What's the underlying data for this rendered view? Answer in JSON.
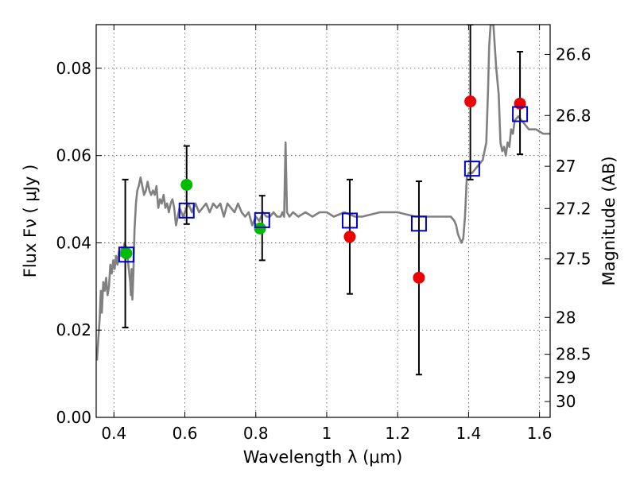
{
  "chart_data": {
    "type": "scatter",
    "xlabel": "Wavelength  λ (μm)",
    "ylabel": "Flux  Fν ( μJy )",
    "y2label": "Magnitude (AB)",
    "xlim": [
      0.35,
      1.63
    ],
    "ylim": [
      0.0,
      0.09
    ],
    "grid": true,
    "x_ticks": [
      0.4,
      0.6,
      0.8,
      1.0,
      1.2,
      1.4,
      1.6
    ],
    "x_tick_labels": [
      "0.4",
      "0.6",
      "0.8",
      "1",
      "1.2",
      "1.4",
      "1.6"
    ],
    "y_ticks": [
      0.0,
      0.02,
      0.04,
      0.06,
      0.08
    ],
    "y_tick_labels": [
      "0.00",
      "0.02",
      "0.04",
      "0.06",
      "0.08"
    ],
    "y2_ticks": [
      {
        "mag": 26.6,
        "label": "26.6"
      },
      {
        "mag": 26.8,
        "label": "26.8"
      },
      {
        "mag": 27.0,
        "label": "27"
      },
      {
        "mag": 27.2,
        "label": "27.2"
      },
      {
        "mag": 27.5,
        "label": "27.5"
      },
      {
        "mag": 28.0,
        "label": "28"
      },
      {
        "mag": 28.5,
        "label": "28.5"
      },
      {
        "mag": 29.0,
        "label": "29"
      },
      {
        "mag": 30.0,
        "label": "30"
      }
    ],
    "series": [
      {
        "name": "SED template",
        "kind": "line",
        "color": "#808080",
        "points": [
          [
            0.352,
            0.013
          ],
          [
            0.356,
            0.018
          ],
          [
            0.36,
            0.023
          ],
          [
            0.363,
            0.029
          ],
          [
            0.366,
            0.024
          ],
          [
            0.37,
            0.031
          ],
          [
            0.374,
            0.029
          ],
          [
            0.378,
            0.032
          ],
          [
            0.382,
            0.028
          ],
          [
            0.386,
            0.03
          ],
          [
            0.39,
            0.035
          ],
          [
            0.394,
            0.033
          ],
          [
            0.398,
            0.036
          ],
          [
            0.402,
            0.034
          ],
          [
            0.406,
            0.037
          ],
          [
            0.41,
            0.035
          ],
          [
            0.414,
            0.038
          ],
          [
            0.418,
            0.037
          ],
          [
            0.422,
            0.039
          ],
          [
            0.426,
            0.038
          ],
          [
            0.43,
            0.04
          ],
          [
            0.434,
            0.039
          ],
          [
            0.438,
            0.037
          ],
          [
            0.442,
            0.034
          ],
          [
            0.446,
            0.031
          ],
          [
            0.448,
            0.028
          ],
          [
            0.45,
            0.034
          ],
          [
            0.452,
            0.027
          ],
          [
            0.455,
            0.033
          ],
          [
            0.458,
            0.043
          ],
          [
            0.462,
            0.049
          ],
          [
            0.466,
            0.052
          ],
          [
            0.47,
            0.053
          ],
          [
            0.475,
            0.055
          ],
          [
            0.48,
            0.053
          ],
          [
            0.485,
            0.051
          ],
          [
            0.49,
            0.052
          ],
          [
            0.495,
            0.054
          ],
          [
            0.5,
            0.052
          ],
          [
            0.505,
            0.051
          ],
          [
            0.51,
            0.052
          ],
          [
            0.515,
            0.051
          ],
          [
            0.52,
            0.053
          ],
          [
            0.525,
            0.048
          ],
          [
            0.53,
            0.05
          ],
          [
            0.535,
            0.049
          ],
          [
            0.54,
            0.051
          ],
          [
            0.545,
            0.048
          ],
          [
            0.55,
            0.049
          ],
          [
            0.555,
            0.047
          ],
          [
            0.56,
            0.049
          ],
          [
            0.565,
            0.05
          ],
          [
            0.57,
            0.048
          ],
          [
            0.575,
            0.044
          ],
          [
            0.58,
            0.046
          ],
          [
            0.585,
            0.048
          ],
          [
            0.59,
            0.047
          ],
          [
            0.595,
            0.046
          ],
          [
            0.6,
            0.047
          ],
          [
            0.61,
            0.049
          ],
          [
            0.62,
            0.047
          ],
          [
            0.63,
            0.049
          ],
          [
            0.64,
            0.047
          ],
          [
            0.65,
            0.048
          ],
          [
            0.66,
            0.049
          ],
          [
            0.67,
            0.047
          ],
          [
            0.68,
            0.049
          ],
          [
            0.69,
            0.048
          ],
          [
            0.7,
            0.049
          ],
          [
            0.71,
            0.046
          ],
          [
            0.72,
            0.049
          ],
          [
            0.73,
            0.048
          ],
          [
            0.74,
            0.047
          ],
          [
            0.75,
            0.049
          ],
          [
            0.76,
            0.047
          ],
          [
            0.77,
            0.046
          ],
          [
            0.78,
            0.047
          ],
          [
            0.79,
            0.044
          ],
          [
            0.8,
            0.046
          ],
          [
            0.81,
            0.045
          ],
          [
            0.82,
            0.047
          ],
          [
            0.83,
            0.046
          ],
          [
            0.84,
            0.046
          ],
          [
            0.85,
            0.047
          ],
          [
            0.86,
            0.046
          ],
          [
            0.87,
            0.046
          ],
          [
            0.875,
            0.047
          ],
          [
            0.88,
            0.046
          ],
          [
            0.884,
            0.063
          ],
          [
            0.888,
            0.047
          ],
          [
            0.895,
            0.046
          ],
          [
            0.905,
            0.047
          ],
          [
            0.92,
            0.046
          ],
          [
            0.94,
            0.047
          ],
          [
            0.96,
            0.046
          ],
          [
            0.98,
            0.047
          ],
          [
            1.0,
            0.047
          ],
          [
            1.02,
            0.046
          ],
          [
            1.05,
            0.047
          ],
          [
            1.08,
            0.046
          ],
          [
            1.1,
            0.046
          ],
          [
            1.15,
            0.047
          ],
          [
            1.2,
            0.047
          ],
          [
            1.25,
            0.046
          ],
          [
            1.3,
            0.046
          ],
          [
            1.35,
            0.046
          ],
          [
            1.36,
            0.045
          ],
          [
            1.365,
            0.044
          ],
          [
            1.37,
            0.042
          ],
          [
            1.375,
            0.041
          ],
          [
            1.38,
            0.04
          ],
          [
            1.385,
            0.041
          ],
          [
            1.39,
            0.046
          ],
          [
            1.395,
            0.055
          ],
          [
            1.4,
            0.056
          ],
          [
            1.41,
            0.056
          ],
          [
            1.42,
            0.057
          ],
          [
            1.43,
            0.058
          ],
          [
            1.44,
            0.059
          ],
          [
            1.45,
            0.063
          ],
          [
            1.455,
            0.075
          ],
          [
            1.458,
            0.085
          ],
          [
            1.462,
            0.09
          ],
          [
            1.47,
            0.09
          ],
          [
            1.478,
            0.08
          ],
          [
            1.485,
            0.074
          ],
          [
            1.49,
            0.063
          ],
          [
            1.495,
            0.061
          ],
          [
            1.5,
            0.062
          ],
          [
            1.505,
            0.06
          ],
          [
            1.51,
            0.063
          ],
          [
            1.515,
            0.062
          ],
          [
            1.52,
            0.066
          ],
          [
            1.525,
            0.065
          ],
          [
            1.53,
            0.068
          ],
          [
            1.54,
            0.069
          ],
          [
            1.55,
            0.068
          ],
          [
            1.56,
            0.067
          ],
          [
            1.57,
            0.066
          ],
          [
            1.59,
            0.066
          ],
          [
            1.61,
            0.065
          ],
          [
            1.63,
            0.065
          ]
        ]
      },
      {
        "name": "model photometry",
        "kind": "open-square",
        "color": "#0000cc",
        "points": [
          [
            0.435,
            0.0373
          ],
          [
            0.605,
            0.0474
          ],
          [
            0.818,
            0.0452
          ],
          [
            1.065,
            0.0451
          ],
          [
            1.26,
            0.0444
          ],
          [
            1.41,
            0.057
          ],
          [
            1.545,
            0.0695
          ]
        ]
      },
      {
        "name": "detections (green)",
        "kind": "dot",
        "color": "#00bb00",
        "points": [
          [
            0.435,
            0.0376
          ],
          [
            0.605,
            0.0533
          ],
          [
            0.812,
            0.0433
          ]
        ]
      },
      {
        "name": "detections (red)",
        "kind": "dot",
        "color": "#ee0000",
        "points": [
          [
            1.065,
            0.0414
          ],
          [
            1.26,
            0.032
          ],
          [
            1.405,
            0.0724
          ],
          [
            1.545,
            0.0719
          ]
        ]
      }
    ],
    "errorbars": [
      {
        "x": 0.432,
        "low": 0.0206,
        "high": 0.0545
      },
      {
        "x": 0.605,
        "low": 0.0443,
        "high": 0.0622
      },
      {
        "x": 0.818,
        "low": 0.036,
        "high": 0.0508
      },
      {
        "x": 1.065,
        "low": 0.0283,
        "high": 0.0545
      },
      {
        "x": 1.26,
        "low": 0.0098,
        "high": 0.0541
      },
      {
        "x": 1.405,
        "low": 0.0545,
        "high": 0.09
      },
      {
        "x": 1.545,
        "low": 0.0603,
        "high": 0.0838
      }
    ]
  }
}
